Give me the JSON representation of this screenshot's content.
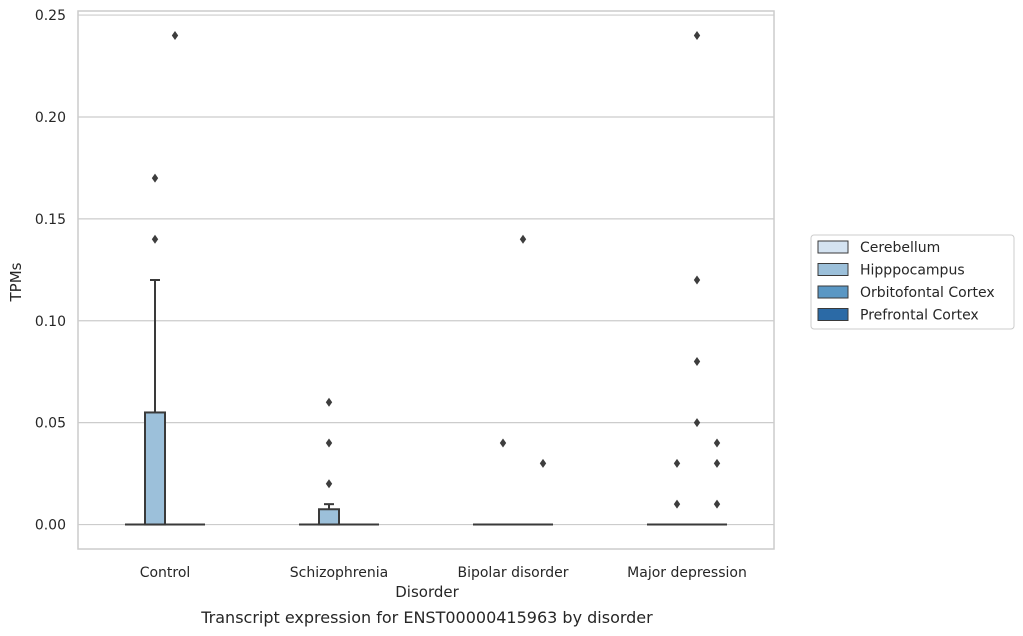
{
  "chart_data": {
    "type": "box",
    "xlabel": "Disorder",
    "ylabel": "TPMs",
    "caption": "Transcript expression for ENST00000415963 by disorder",
    "categories": [
      "Control",
      "Schizophrenia",
      "Bipolar disorder",
      "Major depression"
    ],
    "ylim": [
      -0.012,
      0.252
    ],
    "yticks": [
      0.0,
      0.05,
      0.1,
      0.15,
      0.2,
      0.25
    ],
    "ytick_labels": [
      "0.00",
      "0.05",
      "0.10",
      "0.15",
      "0.20",
      "0.25"
    ],
    "grid": true,
    "legend_position": "right",
    "colors": {
      "Cerebellum": "#d4e3f1",
      "Hipppocampus": "#9cc0da",
      "Orbitofontal Cortex": "#5a97c4",
      "Prefrontal Cortex": "#2b6aa6",
      "box_edge": "#3a3a3a",
      "grid": "#cccccc"
    },
    "series": [
      {
        "name": "Cerebellum",
        "boxes": [
          {
            "q1": 0,
            "median": 0,
            "q3": 0,
            "whisker_low": 0,
            "whisker_high": 0,
            "outliers": []
          },
          {
            "q1": 0,
            "median": 0,
            "q3": 0,
            "whisker_low": 0,
            "whisker_high": 0,
            "outliers": []
          },
          {
            "q1": 0,
            "median": 0,
            "q3": 0,
            "whisker_low": 0,
            "whisker_high": 0,
            "outliers": []
          },
          {
            "q1": 0,
            "median": 0,
            "q3": 0,
            "whisker_low": 0,
            "whisker_high": 0,
            "outliers": []
          }
        ]
      },
      {
        "name": "Hipppocampus",
        "boxes": [
          {
            "q1": 0,
            "median": 0,
            "q3": 0.055,
            "whisker_low": 0,
            "whisker_high": 0.12,
            "outliers": [
              0.14,
              0.17
            ]
          },
          {
            "q1": 0,
            "median": 0,
            "q3": 0.0075,
            "whisker_low": 0,
            "whisker_high": 0.01,
            "outliers": [
              0.02,
              0.04,
              0.06
            ]
          },
          {
            "q1": 0,
            "median": 0,
            "q3": 0,
            "whisker_low": 0,
            "whisker_high": 0,
            "outliers": [
              0.04
            ]
          },
          {
            "q1": 0,
            "median": 0,
            "q3": 0,
            "whisker_low": 0,
            "whisker_high": 0,
            "outliers": [
              0.01,
              0.03
            ]
          }
        ]
      },
      {
        "name": "Orbitofontal Cortex",
        "boxes": [
          {
            "q1": 0,
            "median": 0,
            "q3": 0,
            "whisker_low": 0,
            "whisker_high": 0,
            "outliers": [
              0.24
            ]
          },
          {
            "q1": 0,
            "median": 0,
            "q3": 0,
            "whisker_low": 0,
            "whisker_high": 0,
            "outliers": []
          },
          {
            "q1": 0,
            "median": 0,
            "q3": 0,
            "whisker_low": 0,
            "whisker_high": 0,
            "outliers": [
              0.14
            ]
          },
          {
            "q1": 0,
            "median": 0,
            "q3": 0,
            "whisker_low": 0,
            "whisker_high": 0,
            "outliers": [
              0.05,
              0.08,
              0.12,
              0.24
            ]
          }
        ]
      },
      {
        "name": "Prefrontal Cortex",
        "boxes": [
          {
            "q1": 0,
            "median": 0,
            "q3": 0,
            "whisker_low": 0,
            "whisker_high": 0,
            "outliers": []
          },
          {
            "q1": 0,
            "median": 0,
            "q3": 0,
            "whisker_low": 0,
            "whisker_high": 0,
            "outliers": []
          },
          {
            "q1": 0,
            "median": 0,
            "q3": 0,
            "whisker_low": 0,
            "whisker_high": 0,
            "outliers": [
              0.03
            ]
          },
          {
            "q1": 0,
            "median": 0,
            "q3": 0,
            "whisker_low": 0,
            "whisker_high": 0,
            "outliers": [
              0.01,
              0.03,
              0.04
            ]
          }
        ]
      }
    ]
  }
}
